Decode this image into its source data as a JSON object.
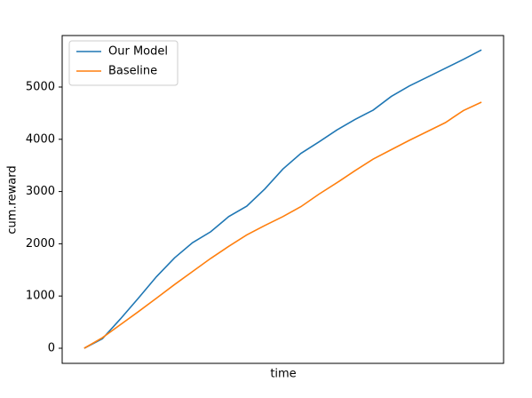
{
  "chart_data": {
    "type": "line",
    "xlabel": "time",
    "ylabel": "cum.reward",
    "series": [
      {
        "name": "Our Model",
        "color": "#1f77b4",
        "values": [
          0,
          180,
          560,
          960,
          1370,
          1730,
          2020,
          2230,
          2520,
          2720,
          3050,
          3430,
          3730,
          3950,
          4180,
          4380,
          4560,
          4820,
          5020,
          5190,
          5360,
          5530,
          5710
        ]
      },
      {
        "name": "Baseline",
        "color": "#ff7f0e",
        "values": [
          0,
          200,
          450,
          700,
          960,
          1220,
          1470,
          1720,
          1950,
          2170,
          2350,
          2520,
          2710,
          2950,
          3170,
          3400,
          3620,
          3800,
          3980,
          4150,
          4320,
          4550,
          4710
        ]
      }
    ],
    "ylim": [
      -289,
      5986
    ],
    "yticks": [
      0,
      1000,
      2000,
      3000,
      4000,
      5000
    ],
    "legend": "upper left"
  }
}
